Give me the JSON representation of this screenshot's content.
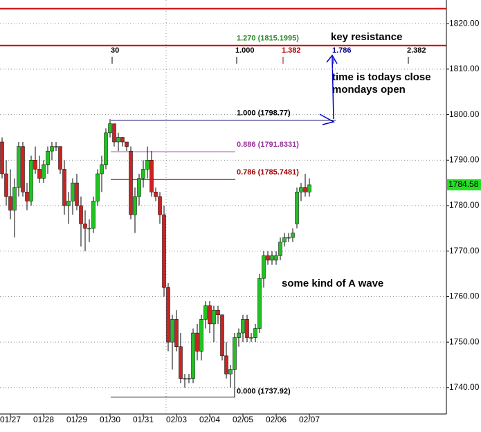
{
  "chart_data": {
    "type": "candlestick",
    "categories": [
      null,
      null,
      "01/27",
      null,
      null,
      null,
      null,
      null,
      null,
      null,
      "01/28",
      null,
      null,
      null,
      null,
      null,
      null,
      null,
      "01/29",
      null,
      null,
      null,
      null,
      null,
      null,
      null,
      "01/30",
      null,
      null,
      null,
      null,
      null,
      null,
      null,
      "01/31",
      null,
      null,
      null,
      null,
      null,
      null,
      null,
      "02/03",
      null,
      null,
      null,
      null,
      null,
      null,
      null,
      "02/04",
      null,
      null,
      null,
      null,
      null,
      null,
      null,
      "02/05",
      null,
      null,
      null,
      null,
      null,
      null,
      null,
      "02/06",
      null,
      null,
      null,
      null,
      null,
      null,
      null,
      "02/07"
    ],
    "open": [
      1794,
      1787,
      1782,
      1779,
      1784,
      1793,
      1783,
      1781,
      1790,
      1788,
      1786,
      1789,
      1792,
      1793,
      1793,
      1788,
      1780,
      1781,
      1785,
      1780,
      1776,
      1775,
      1775,
      1781,
      1787,
      1789,
      1796,
      1798,
      1794,
      1795,
      1794,
      1792,
      1778,
      1782,
      1786,
      1788,
      1790,
      1783,
      1782,
      1778,
      1762,
      1750,
      1755,
      1749,
      1742,
      1742,
      1742,
      1752,
      1748,
      1755,
      1758,
      1754,
      1757,
      1756,
      1747,
      1743,
      1744,
      1751,
      1752,
      1755,
      1751,
      1751,
      1753,
      1764,
      1769,
      1768,
      1768,
      1769,
      1772,
      1773,
      1773,
      1776,
      1783,
      1784,
      1783
    ],
    "high": [
      1795,
      1790,
      1788,
      1786,
      1794,
      1794,
      1785,
      1791,
      1793,
      1791,
      1790,
      1793,
      1794,
      1794,
      1793,
      1790,
      1783,
      1786,
      1787,
      1782,
      1779,
      1777,
      1782,
      1788,
      1791,
      1797,
      1799,
      1798,
      1796,
      1795,
      1794,
      1793,
      1784,
      1787,
      1790,
      1793,
      1792,
      1784,
      1783,
      1780,
      1763,
      1756,
      1757,
      1752,
      1743,
      1743,
      1753,
      1754,
      1756,
      1759,
      1759,
      1758,
      1758,
      1756,
      1750,
      1745,
      1752,
      1753,
      1756,
      1756,
      1752,
      1754,
      1765,
      1770,
      1770,
      1770,
      1770,
      1773,
      1774,
      1774,
      1775,
      1784,
      1785,
      1787,
      1786
    ],
    "low": [
      1786,
      1780,
      1777,
      1773,
      1782,
      1782,
      1779,
      1780,
      1787,
      1785,
      1785,
      1787,
      1790,
      1792,
      1787,
      1778,
      1776,
      1778,
      1779,
      1771,
      1770,
      1772,
      1774,
      1780,
      1783,
      1788,
      1795,
      1793,
      1792,
      1793,
      1792,
      1777,
      1774,
      1780,
      1784,
      1786,
      1782,
      1781,
      1776,
      1760,
      1748,
      1744,
      1748,
      1741,
      1740,
      1741,
      1741,
      1746,
      1746,
      1753,
      1752,
      1750,
      1754,
      1746,
      1742,
      1740,
      1738,
      1749,
      1750,
      1750,
      1750,
      1750,
      1752,
      1762,
      1767,
      1767,
      1767,
      1768,
      1771,
      1772,
      1772,
      1775,
      1781,
      1782,
      1782
    ],
    "close": [
      1787,
      1782,
      1779,
      1784,
      1793,
      1783,
      1781,
      1790,
      1788,
      1786,
      1789,
      1792,
      1793,
      1793,
      1788,
      1780,
      1781,
      1785,
      1780,
      1776,
      1775,
      1775,
      1781,
      1787,
      1789,
      1796,
      1798,
      1794,
      1795,
      1794,
      1793,
      1778,
      1782,
      1786,
      1788,
      1790,
      1783,
      1782,
      1778,
      1762,
      1750,
      1755,
      1749,
      1742,
      1742,
      1742,
      1752,
      1748,
      1755,
      1758,
      1754,
      1757,
      1756,
      1747,
      1743,
      1744,
      1751,
      1752,
      1755,
      1751,
      1751,
      1753,
      1764,
      1769,
      1768,
      1769,
      1769,
      1772,
      1773,
      1773,
      1774,
      1783,
      1784,
      1783,
      1784.58
    ],
    "up_color": "#22c022",
    "down_color": "#cc2222",
    "ylim": [
      1734.2,
      1825.2
    ],
    "yticks": [
      {
        "value": 1740,
        "label": "1740.00"
      },
      {
        "value": 1750,
        "label": "1750.00"
      },
      {
        "value": 1760,
        "label": "1760.00"
      },
      {
        "value": 1770,
        "label": "1770.00"
      },
      {
        "value": 1780,
        "label": "1780.00"
      },
      {
        "value": 1790,
        "label": "1790.00"
      },
      {
        "value": 1800,
        "label": "1800.00"
      },
      {
        "value": 1810,
        "label": "1810.00"
      },
      {
        "value": 1820,
        "label": "1820.00"
      }
    ],
    "grid": true,
    "last_price": 1784.58,
    "resistance_lines": [
      1823.3
    ],
    "price_fibs": [
      {
        "value": 1815.1995,
        "label": "1.270 (1815.1995)",
        "color": "#d00000",
        "text_color": "#2a8a2a"
      },
      {
        "value": 1798.77,
        "label": "1.000 (1798.77)",
        "color": "#000066",
        "text_color": "#000000"
      },
      {
        "value": 1791.8331,
        "label": "0.886 (1791.8331)",
        "color": "#993399",
        "text_color": "#993399"
      },
      {
        "value": 1785.7481,
        "label": "0.786 (1785.7481)",
        "color": "#a00000",
        "text_color": "#a00000"
      },
      {
        "value": 1737.92,
        "label": "0.000 (1737.92)",
        "color": "#000000",
        "text_color": "#000000"
      }
    ],
    "time_fibs": [
      {
        "label": "30",
        "color": "#000000"
      },
      {
        "label": "1.000",
        "color": "#000000"
      },
      {
        "label": "1.382",
        "color": "#a00000"
      },
      {
        "label": "1.786",
        "color": "#000080"
      },
      {
        "label": "2.382",
        "color": "#000000"
      }
    ],
    "annotations": [
      "key resistance",
      "time is todays close",
      "mondays open",
      "some kind of A wave"
    ]
  }
}
